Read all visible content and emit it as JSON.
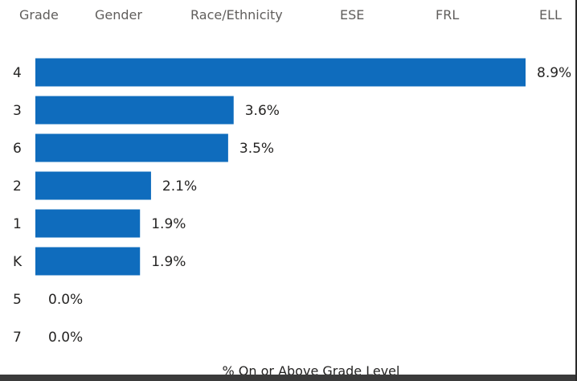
{
  "tabs": [
    {
      "label": "Grade"
    },
    {
      "label": "Gender"
    },
    {
      "label": "Race/Ethnicity"
    },
    {
      "label": "ESE"
    },
    {
      "label": "FRL"
    },
    {
      "label": "ELL"
    }
  ],
  "colors": {
    "bar": "#0f6cbd",
    "tab_text": "#605e5c",
    "label_text": "#252423"
  },
  "chart_data": {
    "type": "bar",
    "orientation": "horizontal",
    "categories": [
      "4",
      "3",
      "6",
      "2",
      "1",
      "K",
      "5",
      "7"
    ],
    "values": [
      8.9,
      3.6,
      3.5,
      2.1,
      1.9,
      1.9,
      0.0,
      0.0
    ],
    "data_labels": [
      "8.9%",
      "3.6%",
      "3.5%",
      "2.1%",
      "1.9%",
      "1.9%",
      "0.0%",
      "0.0%"
    ],
    "xlabel": "% On or Above Grade Level",
    "xlim": [
      0,
      8.9
    ],
    "grid": false,
    "legend": "none"
  }
}
